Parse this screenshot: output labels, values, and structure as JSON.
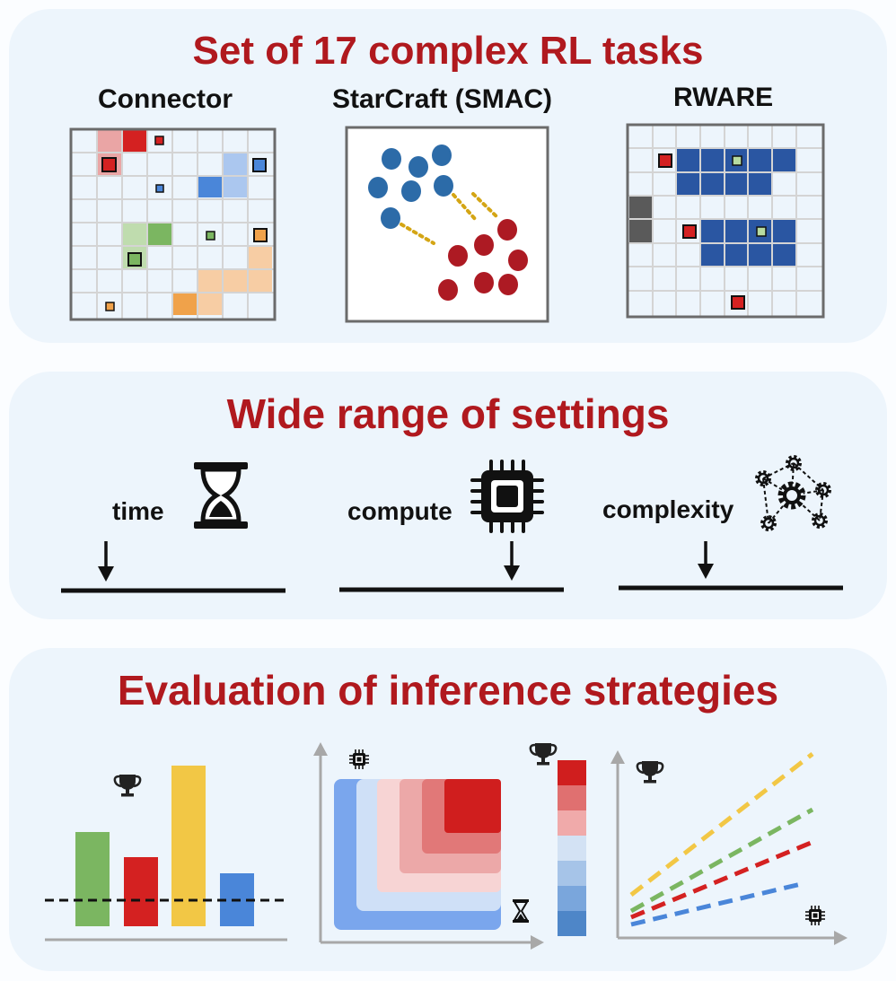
{
  "panels": {
    "tasks": {
      "title": "Set of 17 complex RL tasks",
      "envs": [
        "Connector",
        "StarCraft (SMAC)",
        "RWARE"
      ]
    },
    "settings": {
      "title": "Wide range of settings",
      "items": [
        {
          "label": "time",
          "icon": "hourglass-icon"
        },
        {
          "label": "compute",
          "icon": "chip-icon"
        },
        {
          "label": "complexity",
          "icon": "gear-network-icon"
        }
      ]
    },
    "evaluation": {
      "title": "Evaluation of inference strategies",
      "icons": [
        "trophy-icon",
        "chip-icon",
        "hourglass-icon"
      ]
    }
  },
  "colors": {
    "title_red": "#b0191e",
    "panel_bg": "#edf5fc",
    "green": "#7bb661",
    "red": "#d42121",
    "yellow": "#f2c745",
    "blue": "#4a86d9",
    "navy": "#2a56a2",
    "orange": "#f0a24a"
  }
}
